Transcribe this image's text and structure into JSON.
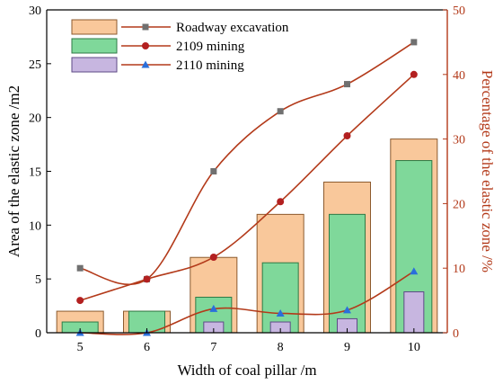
{
  "chart_data": {
    "type": "bar",
    "title": "",
    "xlabel": "Width of coal pillar /m",
    "ylabel_left": "Area of the elastic zone /m2",
    "ylabel_right": "Percentage of the elastic zone /%",
    "categories": [
      "5",
      "6",
      "7",
      "8",
      "9",
      "10"
    ],
    "ylim_left": [
      0,
      30
    ],
    "ylim_right": [
      0,
      50
    ],
    "yticks_left": [
      "0",
      "5",
      "10",
      "15",
      "20",
      "25",
      "30"
    ],
    "yticks_right": [
      "0",
      "10",
      "20",
      "30",
      "40",
      "50"
    ],
    "grid": false,
    "legend_position": "top-left",
    "bar_series": [
      {
        "name": "Roadway excavation",
        "values": [
          2,
          2,
          7,
          11,
          14,
          18
        ],
        "fill": "#f9c89b",
        "stroke": "#8c5a2e"
      },
      {
        "name": "2109 mining",
        "values": [
          1,
          2,
          3.3,
          6.5,
          11,
          16
        ],
        "fill": "#7fd89a",
        "stroke": "#2f7a45"
      },
      {
        "name": "2110 mining",
        "values": [
          0,
          0,
          1,
          1,
          1.3,
          3.8
        ],
        "fill": "#c7b6e0",
        "stroke": "#5e4a86"
      }
    ],
    "line_series": [
      {
        "name": "Roadway excavation",
        "axis": "right",
        "values": [
          10,
          8.3,
          25,
          34.3,
          38.5,
          45
        ],
        "color": "#b33a1a",
        "marker": "square",
        "marker_color": "#707070"
      },
      {
        "name": "2109 mining",
        "axis": "right",
        "values": [
          5,
          8.3,
          11.7,
          20.3,
          30.5,
          40
        ],
        "color": "#b33a1a",
        "marker": "circle",
        "marker_color": "#b32020"
      },
      {
        "name": "2110 mining",
        "axis": "right",
        "values": [
          0,
          0,
          3.7,
          3,
          3.5,
          9.5
        ],
        "color": "#b33a1a",
        "marker": "triangle",
        "marker_color": "#2a6fdb"
      }
    ],
    "colors": {
      "left_axis": "#000000",
      "right_axis": "#b33a1a"
    }
  }
}
